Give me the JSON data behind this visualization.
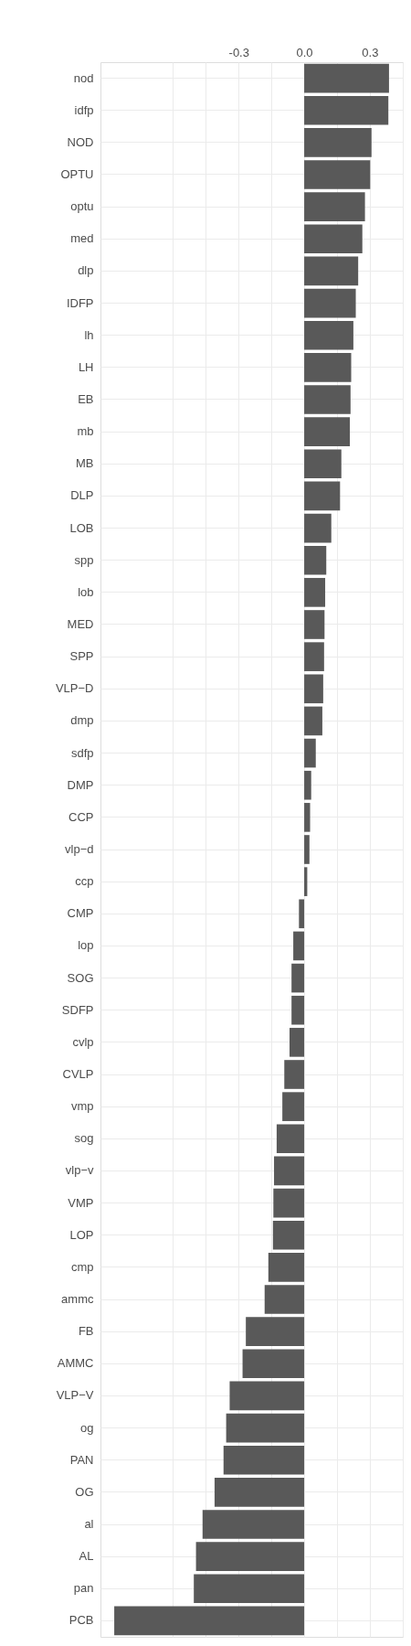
{
  "chart_data": {
    "type": "bar",
    "orientation": "horizontal",
    "color": "#595959",
    "grid": true,
    "categories": [
      "nod",
      "idfp",
      "NOD",
      "OPTU",
      "optu",
      "med",
      "dlp",
      "IDFP",
      "lh",
      "LH",
      "EB",
      "mb",
      "MB",
      "DLP",
      "LOB",
      "spp",
      "lob",
      "MED",
      "SPP",
      "VLP−D",
      "dmp",
      "sdfp",
      "DMP",
      "CCP",
      "vlp−d",
      "ccp",
      "CMP",
      "lop",
      "SOG",
      "SDFP",
      "cvlp",
      "CVLP",
      "vmp",
      "sog",
      "vlp−v",
      "VMP",
      "LOP",
      "cmp",
      "ammc",
      "FB",
      "AMMC",
      "VLP−V",
      "og",
      "PAN",
      "OG",
      "al",
      "AL",
      "pan",
      "PCB"
    ],
    "values": [
      0.388,
      0.385,
      0.308,
      0.302,
      0.278,
      0.266,
      0.247,
      0.236,
      0.225,
      0.215,
      0.212,
      0.209,
      0.17,
      0.164,
      0.124,
      0.101,
      0.096,
      0.093,
      0.091,
      0.087,
      0.083,
      0.053,
      0.032,
      0.027,
      0.024,
      0.014,
      -0.024,
      -0.05,
      -0.058,
      -0.058,
      -0.067,
      -0.091,
      -0.1,
      -0.126,
      -0.138,
      -0.141,
      -0.143,
      -0.164,
      -0.181,
      -0.267,
      -0.282,
      -0.341,
      -0.357,
      -0.369,
      -0.41,
      -0.465,
      -0.495,
      -0.505,
      -0.869
    ],
    "xlim": [
      -0.932,
      0.451
    ],
    "xticks": [
      {
        "value": -0.6,
        "label": null
      },
      {
        "value": -0.45,
        "label": null
      },
      -0.3,
      {
        "value": -0.15,
        "label": null
      },
      {
        "value": 0,
        "label": "0.0"
      },
      {
        "value": 0.15,
        "label": null
      },
      0.3,
      {
        "value": 0.45,
        "label": null
      }
    ]
  }
}
